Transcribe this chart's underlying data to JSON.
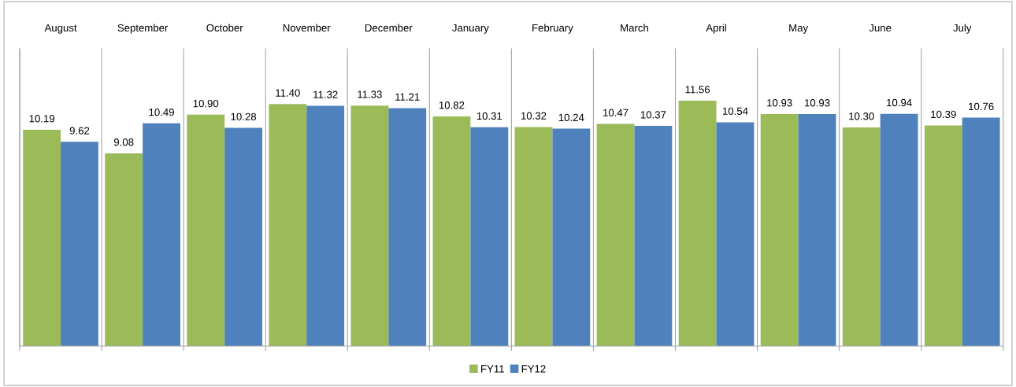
{
  "chart_data": {
    "type": "bar",
    "categories": [
      "August",
      "September",
      "October",
      "November",
      "December",
      "January",
      "February",
      "March",
      "April",
      "May",
      "June",
      "July"
    ],
    "series": [
      {
        "name": "FY11",
        "color": "#9bbb59",
        "values": [
          10.19,
          9.08,
          10.9,
          11.4,
          11.33,
          10.82,
          10.32,
          10.47,
          11.56,
          10.93,
          10.3,
          10.39
        ],
        "value_labels": [
          "10.19",
          "9.08",
          "10.90",
          "11.40",
          "11.33",
          "10.82",
          "10.32",
          "10.47",
          "11.56",
          "10.93",
          "10.30",
          "10.39"
        ]
      },
      {
        "name": "FY12",
        "color": "#4f81bd",
        "values": [
          9.62,
          10.49,
          10.28,
          11.32,
          11.21,
          10.31,
          10.24,
          10.37,
          10.54,
          10.93,
          10.94,
          10.76
        ],
        "value_labels": [
          "9.62",
          "10.49",
          "10.28",
          "11.32",
          "11.21",
          "10.31",
          "10.24",
          "10.37",
          "10.54",
          "10.93",
          "10.94",
          "10.76"
        ]
      }
    ],
    "ylim": [
      0,
      14
    ],
    "tick_labels": "x",
    "grid": "x",
    "legend": "bottom"
  }
}
